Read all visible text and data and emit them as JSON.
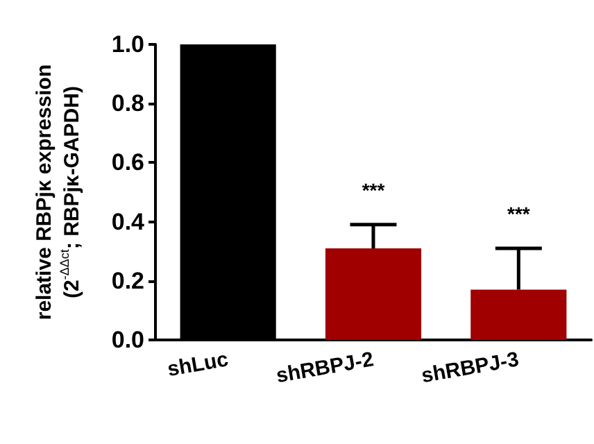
{
  "chart_data": {
    "type": "bar",
    "ylabel": "relative RBPjκ expression\n(2$^{-ΔΔct}$; RBPjκ-GAPDH)",
    "categories": [
      "shLuc",
      "shRBPJ-2",
      "shRBPJ-3"
    ],
    "values": [
      1.0,
      0.31,
      0.17
    ],
    "colors": [
      "#000000",
      "#a00000",
      "#a00000"
    ],
    "errors": [
      null,
      [
        0.31,
        0.39
      ],
      [
        0.17,
        0.31
      ]
    ],
    "ylim": [
      0,
      1.0
    ],
    "yticks": [
      {
        "value": 0,
        "label": "0.0"
      },
      0.2,
      0.4,
      0.6,
      0.8,
      {
        "value": 1,
        "label": "1.0"
      }
    ],
    "grid": false,
    "annotations": [
      "***",
      "***"
    ]
  }
}
